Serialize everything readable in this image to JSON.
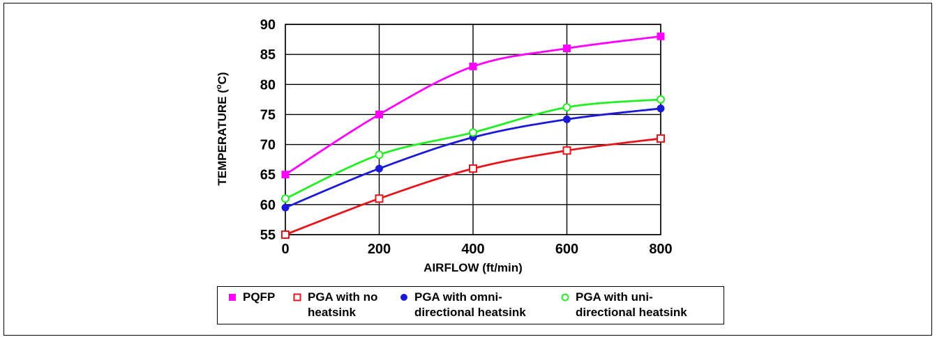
{
  "chart_data": {
    "type": "line",
    "title": "",
    "xlabel": "AIRFLOW (ft/min)",
    "ylabel_main": "TEMPERATURE (",
    "ylabel_sup": "o",
    "ylabel_end": "C)",
    "x": [
      0,
      200,
      400,
      600,
      800
    ],
    "xlim": [
      0,
      800
    ],
    "ylim": [
      55,
      90
    ],
    "x_ticks": [
      "0",
      "200",
      "400",
      "600",
      "800"
    ],
    "y_ticks": [
      "55",
      "60",
      "65",
      "70",
      "75",
      "80",
      "85",
      "90"
    ],
    "grid": true,
    "legend_position": "bottom",
    "series": [
      {
        "name": "PQFP",
        "legend_lines": [
          "PQFP"
        ],
        "values": [
          65,
          75,
          83,
          86,
          88
        ],
        "color": "#ff00ff",
        "marker": "filled-square"
      },
      {
        "name": "PGA with no heatsink",
        "legend_lines": [
          "PGA with no",
          "heatsink"
        ],
        "values": [
          55,
          61,
          66,
          69,
          71
        ],
        "color": "#e8141b",
        "marker": "open-square"
      },
      {
        "name": "PGA with omni-directional heatsink",
        "legend_lines": [
          "PGA with omni-",
          "directional heatsink"
        ],
        "values": [
          59.5,
          66,
          71.2,
          74.2,
          76
        ],
        "color": "#1a1ad6",
        "marker": "filled-circle"
      },
      {
        "name": "PGA with uni-directional heatsink",
        "legend_lines": [
          "PGA with uni-",
          "directional heatsink"
        ],
        "values": [
          61,
          68.3,
          72,
          76.2,
          77.5
        ],
        "color": "#22ee22",
        "marker": "open-circle"
      }
    ]
  }
}
